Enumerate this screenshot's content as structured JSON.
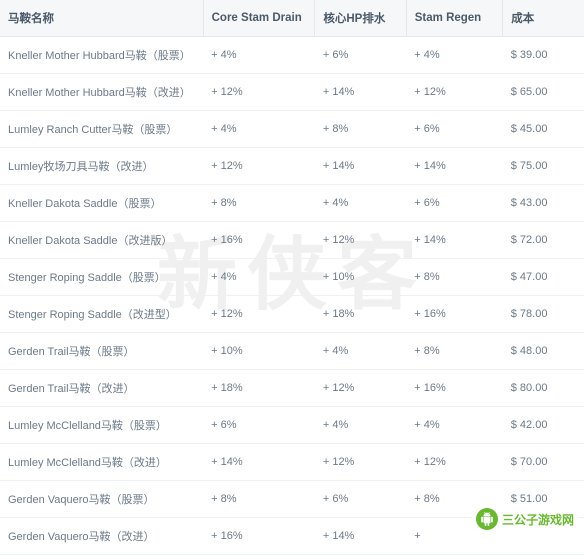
{
  "watermark": "新侠客",
  "columns": [
    "马鞍名称",
    "Core Stam Drain",
    "核心HP排水",
    "Stam Regen",
    "成本"
  ],
  "rows": [
    [
      "Kneller Mother Hubbard马鞍（股票）",
      "+ 4%",
      "+ 6%",
      "+ 4%",
      "$ 39.00"
    ],
    [
      "Kneller Mother Hubbard马鞍（改进）",
      "+ 12%",
      "+ 14%",
      "+ 12%",
      "$ 65.00"
    ],
    [
      "Lumley Ranch Cutter马鞍（股票）",
      "+ 4%",
      "+ 8%",
      "+ 6%",
      "$ 45.00"
    ],
    [
      "Lumley牧场刀具马鞍（改进）",
      "+ 12%",
      "+ 14%",
      "+ 14%",
      "$ 75.00"
    ],
    [
      "Kneller Dakota Saddle（股票）",
      "+ 8%",
      "+ 4%",
      "+ 6%",
      "$ 43.00"
    ],
    [
      "Kneller Dakota Saddle（改进版）",
      "+ 16%",
      "+ 12%",
      "+ 14%",
      "$ 72.00"
    ],
    [
      "Stenger Roping Saddle（股票）",
      "+ 4%",
      "+ 10%",
      "+ 8%",
      "$ 47.00"
    ],
    [
      "Stenger Roping Saddle（改进型）",
      "+ 12%",
      "+ 18%",
      "+ 16%",
      "$ 78.00"
    ],
    [
      "Gerden Trail马鞍（股票）",
      "+ 10%",
      "+ 4%",
      "+ 8%",
      "$ 48.00"
    ],
    [
      "Gerden Trail马鞍（改进）",
      "+ 18%",
      "+ 12%",
      "+ 16%",
      "$ 80.00"
    ],
    [
      "Lumley McClelland马鞍（股票）",
      "+ 6%",
      "+ 4%",
      "+ 4%",
      "$ 42.00"
    ],
    [
      "Lumley McClelland马鞍（改进）",
      "+ 14%",
      "+ 12%",
      "+ 12%",
      "$ 70.00"
    ],
    [
      "Gerden Vaquero马鞍（股票）",
      "+ 8%",
      "+ 6%",
      "+ 8%",
      "$ 51.00"
    ],
    [
      "Gerden Vaquero马鞍（改进）",
      "+ 16%",
      "+ 14%",
      "+",
      ""
    ]
  ],
  "site": {
    "label": "三公子游戏网",
    "icon_color": "#68b92e"
  },
  "style": {
    "header_bg": "#f6f7f8",
    "border_color": "#e5e8eb",
    "row_border": "#eef0f2",
    "text_color": "#6b7a89",
    "header_text": "#4a5a6a"
  }
}
